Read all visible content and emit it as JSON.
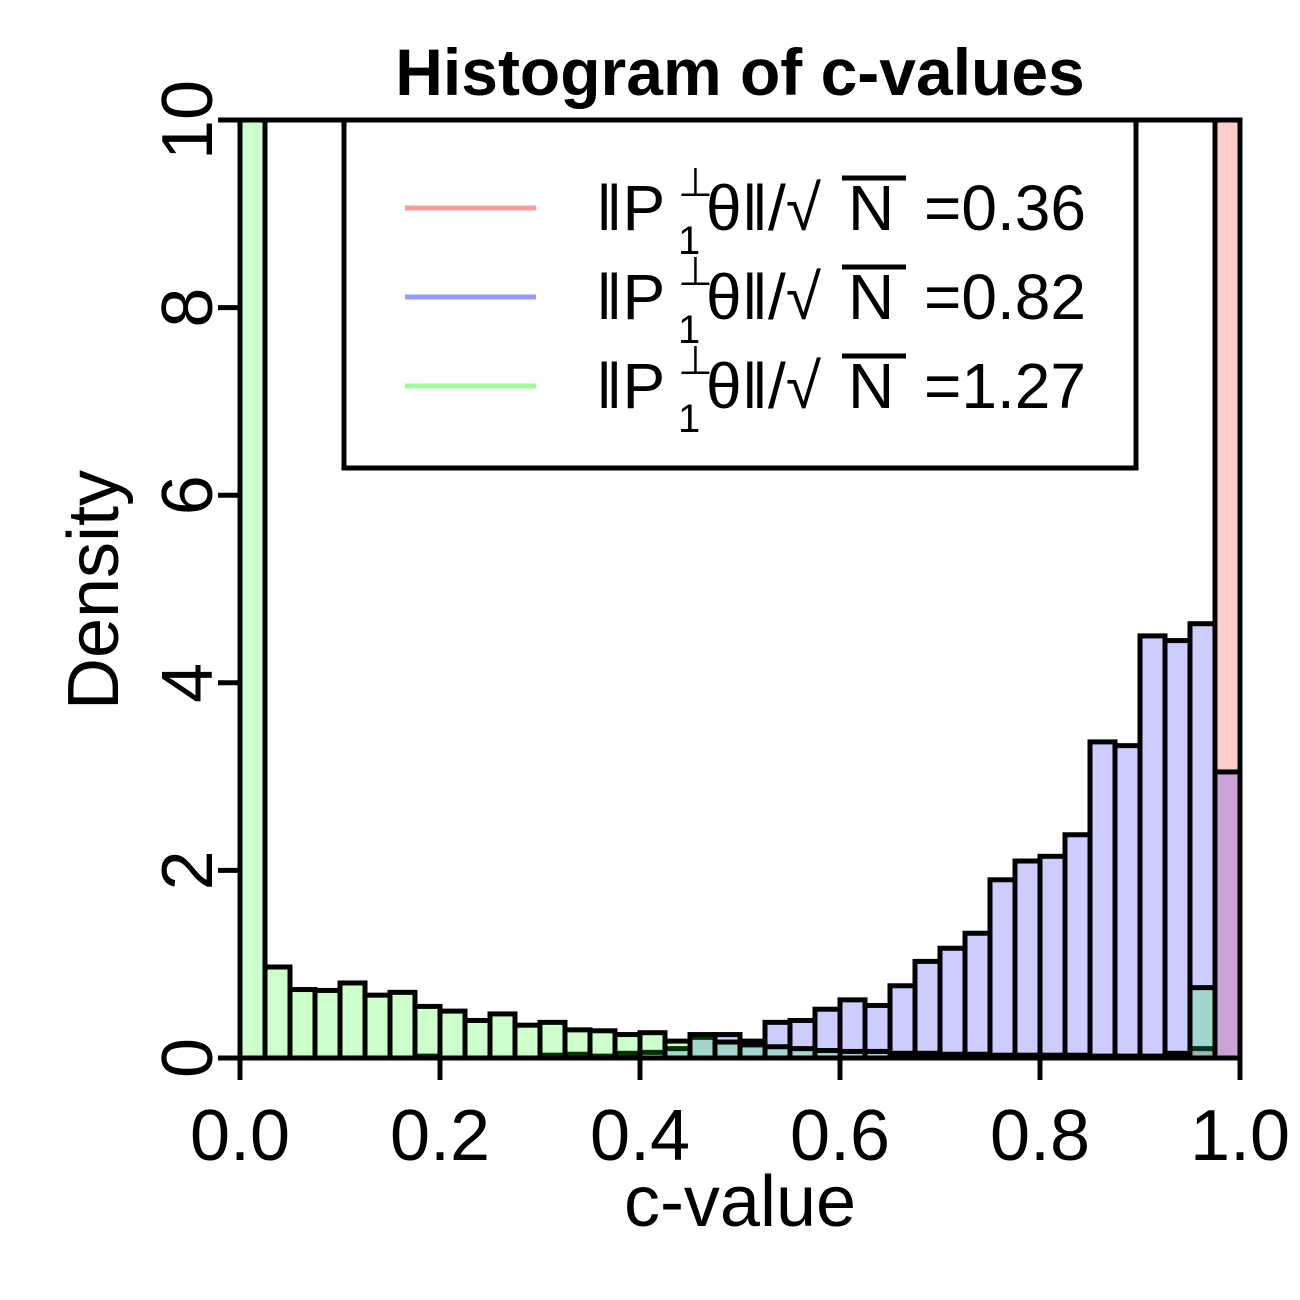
{
  "chart_data": {
    "type": "bar",
    "title": "Histogram of c-values",
    "xlabel": "c-value",
    "ylabel": "Density",
    "xlim": [
      0,
      1
    ],
    "ylim": [
      0,
      10
    ],
    "xticks": [
      "0.0",
      "0.2",
      "0.4",
      "0.6",
      "0.8",
      "1.0"
    ],
    "yticks": [
      "0",
      "2",
      "4",
      "6",
      "8",
      "10"
    ],
    "bin_width": 0.025,
    "legend_position": "top-center",
    "legend_prefix": "‖P",
    "legend_sup": "⊥",
    "legend_sub": "1",
    "legend_mid": "θ‖/√",
    "legend_var": "N",
    "series": [
      {
        "name": "=0.36",
        "color": "#ff9999",
        "fill": "rgba(255,0,0,0.2)",
        "values": [
          0,
          0,
          0,
          0,
          0,
          0,
          0,
          0,
          0,
          0,
          0,
          0,
          0,
          0,
          0,
          0,
          0,
          0,
          0,
          0,
          0,
          0,
          0,
          0,
          0,
          0,
          0,
          0,
          0,
          0,
          0,
          0,
          0,
          0,
          0,
          0,
          0,
          0.02,
          0.1,
          10
        ]
      },
      {
        "name": "=0.82",
        "color": "#9999ff",
        "fill": "rgba(0,0,255,0.2)",
        "values": [
          0,
          0,
          0,
          0,
          0,
          0,
          0,
          0.02,
          0,
          0,
          0,
          0,
          0.03,
          0.04,
          0.02,
          0.05,
          0.06,
          0.1,
          0.22,
          0.25,
          0.18,
          0.38,
          0.4,
          0.52,
          0.62,
          0.56,
          0.77,
          1.03,
          1.17,
          1.33,
          1.9,
          2.1,
          2.15,
          2.38,
          3.37,
          3.33,
          4.5,
          4.45,
          4.63,
          3.05
        ]
      },
      {
        "name": "=1.27",
        "color": "#99ff99",
        "fill": "rgba(0,255,0,0.2)",
        "values": [
          10,
          0.97,
          0.73,
          0.72,
          0.8,
          0.67,
          0.7,
          0.55,
          0.5,
          0.4,
          0.47,
          0.35,
          0.38,
          0.3,
          0.29,
          0.25,
          0.27,
          0.18,
          0.25,
          0.17,
          0.14,
          0.12,
          0.1,
          0.08,
          0.07,
          0.07,
          0.05,
          0.05,
          0.04,
          0.04,
          0.03,
          0.03,
          0.03,
          0.03,
          0.02,
          0.02,
          0.02,
          0.05,
          0.75,
          0
        ]
      }
    ]
  }
}
